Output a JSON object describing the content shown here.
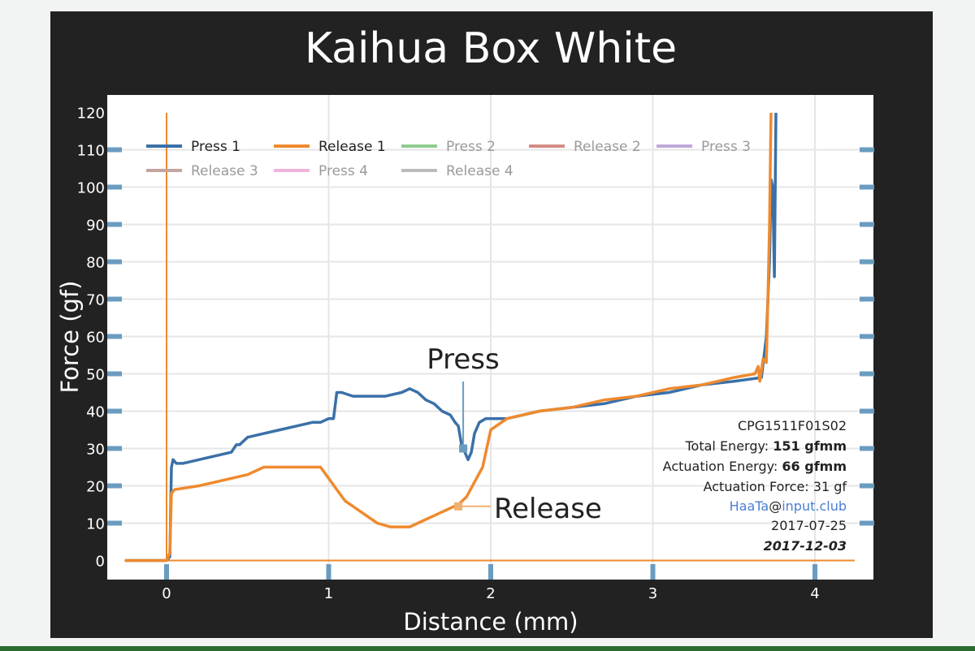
{
  "colors": {
    "press1": "#3a70a8",
    "release1": "#ef8a2e",
    "press2": "#8fcc8f",
    "release2": "#d38b84",
    "press3": "#bfa8da",
    "release3": "#c4a49f",
    "press4": "#efb4dc",
    "release4": "#bcbcbc",
    "frame": "#222222",
    "plot_bg": "#ffffff",
    "grid": "#e6e6e6",
    "tick_marker": "#6a9cc0",
    "link": "#4a7fd4"
  },
  "info": {
    "part_number": "CPG1511F01S02",
    "total_energy_label": "Total Energy: ",
    "total_energy_value": "151 gfmm",
    "actuation_energy_label": "Actuation Energy: ",
    "actuation_energy_value": "66 gfmm",
    "actuation_force": "Actuation Force: 31 gf",
    "author_name": "HaaTa",
    "author_at": "@",
    "author_domain": "input.club",
    "date_created": "2017-07-25",
    "date_updated": "2017-12-03"
  },
  "chart_data": {
    "type": "line",
    "title": "Kaihua Box White",
    "xlabel": "Distance (mm)",
    "ylabel": "Force (gf)",
    "xlim": [
      -0.25,
      4.25
    ],
    "ylim": [
      -5,
      120
    ],
    "xticks": [
      0,
      1,
      2,
      3,
      4
    ],
    "yticks": [
      0,
      10,
      20,
      30,
      40,
      50,
      60,
      70,
      80,
      90,
      100,
      110,
      120
    ],
    "grid": true,
    "legend_position": "top-left",
    "legend": [
      "Press 1",
      "Release 1",
      "Press 2",
      "Release 2",
      "Press 3",
      "Release 3",
      "Press 4",
      "Release 4"
    ],
    "series": [
      {
        "name": "Press 1",
        "color": "#3a70a8",
        "x": [
          -0.25,
          0,
          0.02,
          0.03,
          0.04,
          0.06,
          0.1,
          0.2,
          0.3,
          0.4,
          0.43,
          0.45,
          0.5,
          0.6,
          0.7,
          0.8,
          0.9,
          0.95,
          1.0,
          1.03,
          1.05,
          1.08,
          1.15,
          1.25,
          1.35,
          1.45,
          1.5,
          1.55,
          1.6,
          1.65,
          1.7,
          1.75,
          1.78,
          1.8,
          1.82,
          1.84,
          1.86,
          1.88,
          1.9,
          1.93,
          1.97,
          2.0,
          2.1,
          2.3,
          2.5,
          2.7,
          2.9,
          3.1,
          3.3,
          3.5,
          3.67,
          3.7,
          3.72,
          3.73,
          3.74,
          3.75,
          3.76
        ],
        "y": [
          0,
          0,
          1,
          25,
          27,
          26,
          26,
          27,
          28,
          29,
          31,
          31,
          33,
          34,
          35,
          36,
          37,
          37,
          38,
          38,
          45,
          45,
          44,
          44,
          44,
          45,
          46,
          45,
          43,
          42,
          40,
          39,
          37,
          36,
          31,
          29,
          27,
          29,
          34,
          37,
          38,
          38,
          38,
          40,
          41,
          42,
          44,
          45,
          47,
          48,
          49,
          60,
          80,
          102,
          100,
          76,
          122
        ]
      },
      {
        "name": "Release 1",
        "color": "#ef8a2e",
        "x": [
          -0.25,
          0.0,
          0.02,
          0.03,
          0.05,
          0.2,
          0.4,
          0.5,
          0.6,
          0.7,
          0.8,
          0.9,
          0.95,
          1.0,
          1.1,
          1.2,
          1.3,
          1.38,
          1.45,
          1.5,
          1.6,
          1.7,
          1.8,
          1.85,
          1.9,
          1.95,
          1.97,
          2.0,
          2.1,
          2.3,
          2.5,
          2.7,
          2.9,
          3.1,
          3.3,
          3.5,
          3.63,
          3.65,
          3.66,
          3.68,
          3.7,
          3.71,
          3.72,
          3.73
        ],
        "y": [
          0,
          0,
          2,
          18,
          19,
          20,
          22,
          23,
          25,
          25,
          25,
          25,
          25,
          22,
          16,
          13,
          10,
          9,
          9,
          9,
          11,
          13,
          15,
          17,
          21,
          25,
          29,
          35,
          38,
          40,
          41,
          43,
          44,
          46,
          47,
          49,
          50,
          52,
          48,
          54,
          53,
          70,
          90,
          122
        ]
      }
    ],
    "annotations": [
      {
        "text": "Press",
        "x": 1.83,
        "y": 30
      },
      {
        "text": "Release",
        "x": 1.8,
        "y": 14.5
      }
    ]
  }
}
